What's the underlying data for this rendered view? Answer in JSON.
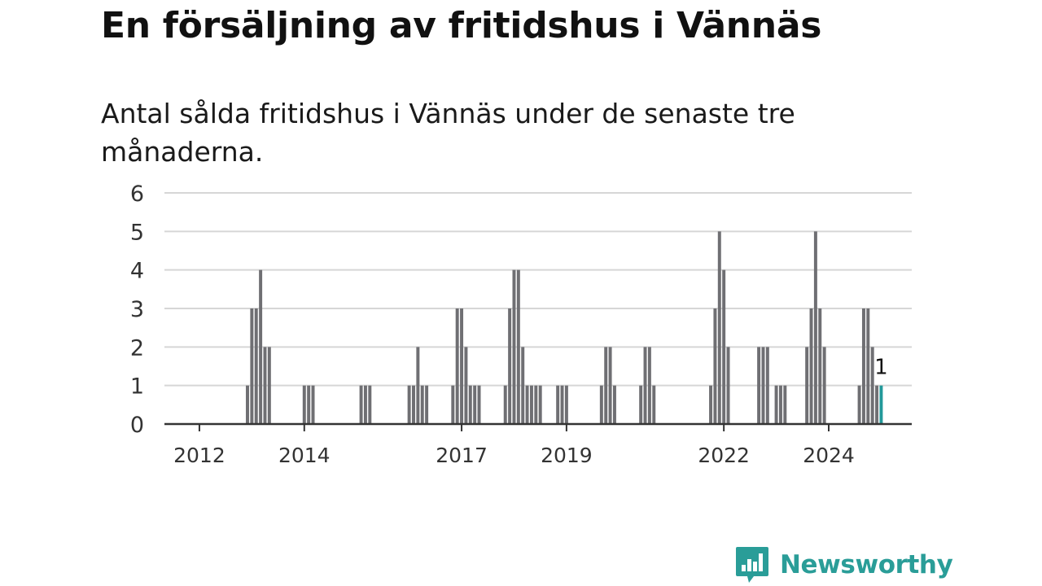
{
  "headline": "En försäljning av fritidshus i Vännäs",
  "subtitle": "Antal sålda fritidshus i Vännäs under de senaste tre månaderna.",
  "brand": {
    "name": "Newsworthy",
    "logo_icon": "bar-chart-speech-bubble-icon"
  },
  "colors": {
    "bar": "#6f6f73",
    "highlight": "#23999a",
    "grid": "#d6d6d6",
    "axis": "#333333",
    "brand": "#2a9d98"
  },
  "chart_data": {
    "type": "bar",
    "title": "",
    "xlabel": "",
    "ylabel": "",
    "ylim": [
      0,
      6
    ],
    "yticks": [
      0,
      1,
      2,
      3,
      4,
      5,
      6
    ],
    "xticks": [
      {
        "label": "2012",
        "month": 1
      },
      {
        "label": "2014",
        "month": 25
      },
      {
        "label": "2017",
        "month": 61
      },
      {
        "label": "2019",
        "month": 85
      },
      {
        "label": "2022",
        "month": 121
      },
      {
        "label": "2024",
        "month": 145
      }
    ],
    "x_month_range": [
      -7,
      164
    ],
    "grid": true,
    "bars": [
      {
        "month": 12,
        "value": 1
      },
      {
        "month": 13,
        "value": 3
      },
      {
        "month": 14,
        "value": 3
      },
      {
        "month": 15,
        "value": 4
      },
      {
        "month": 16,
        "value": 2
      },
      {
        "month": 17,
        "value": 2
      },
      {
        "month": 25,
        "value": 1
      },
      {
        "month": 26,
        "value": 1
      },
      {
        "month": 27,
        "value": 1
      },
      {
        "month": 38,
        "value": 1
      },
      {
        "month": 39,
        "value": 1
      },
      {
        "month": 40,
        "value": 1
      },
      {
        "month": 49,
        "value": 1
      },
      {
        "month": 50,
        "value": 1
      },
      {
        "month": 51,
        "value": 2
      },
      {
        "month": 52,
        "value": 1
      },
      {
        "month": 53,
        "value": 1
      },
      {
        "month": 59,
        "value": 1
      },
      {
        "month": 60,
        "value": 3
      },
      {
        "month": 61,
        "value": 3
      },
      {
        "month": 62,
        "value": 2
      },
      {
        "month": 63,
        "value": 1
      },
      {
        "month": 64,
        "value": 1
      },
      {
        "month": 65,
        "value": 1
      },
      {
        "month": 71,
        "value": 1
      },
      {
        "month": 72,
        "value": 3
      },
      {
        "month": 73,
        "value": 4
      },
      {
        "month": 74,
        "value": 4
      },
      {
        "month": 75,
        "value": 2
      },
      {
        "month": 76,
        "value": 1
      },
      {
        "month": 77,
        "value": 1
      },
      {
        "month": 78,
        "value": 1
      },
      {
        "month": 79,
        "value": 1
      },
      {
        "month": 83,
        "value": 1
      },
      {
        "month": 84,
        "value": 1
      },
      {
        "month": 85,
        "value": 1
      },
      {
        "month": 93,
        "value": 1
      },
      {
        "month": 94,
        "value": 2
      },
      {
        "month": 95,
        "value": 2
      },
      {
        "month": 96,
        "value": 1
      },
      {
        "month": 102,
        "value": 1
      },
      {
        "month": 103,
        "value": 2
      },
      {
        "month": 104,
        "value": 2
      },
      {
        "month": 105,
        "value": 1
      },
      {
        "month": 118,
        "value": 1
      },
      {
        "month": 119,
        "value": 3
      },
      {
        "month": 120,
        "value": 5
      },
      {
        "month": 121,
        "value": 4
      },
      {
        "month": 122,
        "value": 2
      },
      {
        "month": 129,
        "value": 2
      },
      {
        "month": 130,
        "value": 2
      },
      {
        "month": 131,
        "value": 2
      },
      {
        "month": 133,
        "value": 1
      },
      {
        "month": 134,
        "value": 1
      },
      {
        "month": 135,
        "value": 1
      },
      {
        "month": 140,
        "value": 2
      },
      {
        "month": 141,
        "value": 3
      },
      {
        "month": 142,
        "value": 5
      },
      {
        "month": 143,
        "value": 3
      },
      {
        "month": 144,
        "value": 2
      },
      {
        "month": 152,
        "value": 1
      },
      {
        "month": 153,
        "value": 3
      },
      {
        "month": 154,
        "value": 3
      },
      {
        "month": 155,
        "value": 2
      },
      {
        "month": 156,
        "value": 1
      },
      {
        "month": 157,
        "value": 1,
        "highlight": true
      }
    ],
    "annotation": {
      "text": "1",
      "month": 157,
      "value": 1
    }
  }
}
